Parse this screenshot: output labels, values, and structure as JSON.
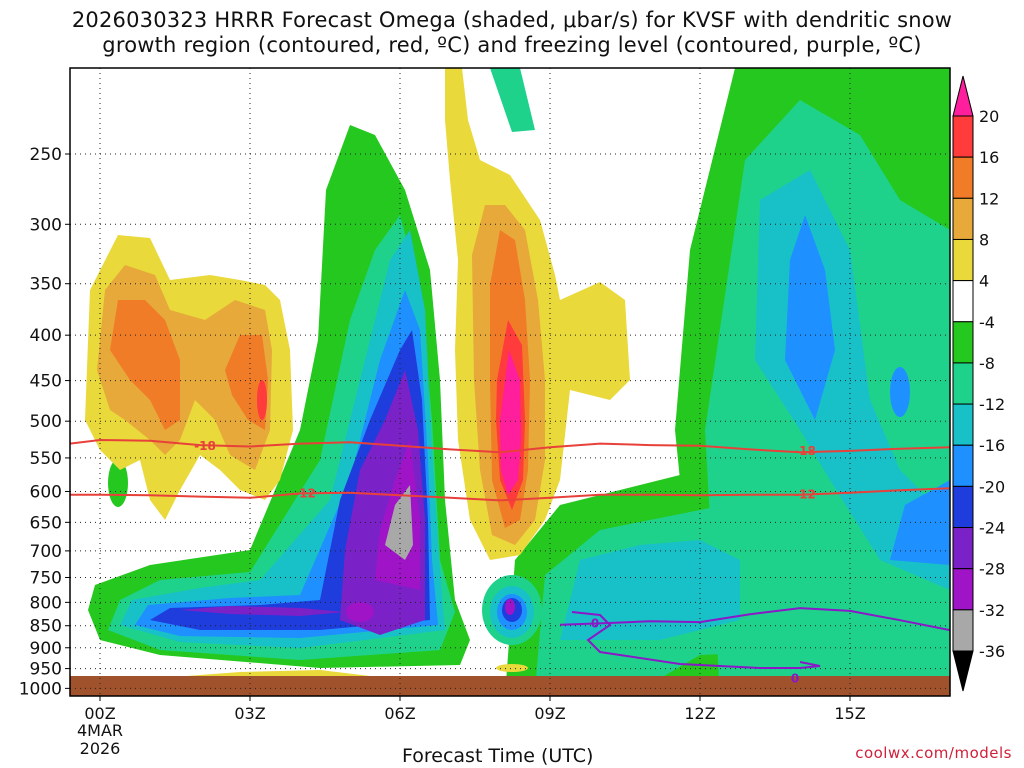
{
  "chart_data": {
    "type": "heatmap",
    "title": "2026030323 HRRR Forecast Omega (shaded, μbar/s) for KVSF with dendritic snow",
    "subtitle": "growth region (contoured, red, ºC) and freezing level (contoured, purple, ºC)",
    "xlabel": "Forecast Time (UTC)",
    "ylabel": "",
    "x_ticks": [
      "00Z",
      "03Z",
      "06Z",
      "09Z",
      "12Z",
      "15Z"
    ],
    "x_tick_hours": [
      0,
      3,
      6,
      9,
      12,
      15
    ],
    "x_date_line1": "4MAR",
    "x_date_line2": "2026",
    "x_range_hours": [
      -0.6,
      17.0
    ],
    "y_ticks": [
      250,
      300,
      350,
      400,
      450,
      500,
      550,
      600,
      650,
      700,
      750,
      800,
      850,
      900,
      950,
      1000
    ],
    "y_range_hPa": [
      200,
      1020
    ],
    "y_scale": "log-pressure",
    "colorbar_levels": [
      20,
      16,
      12,
      8,
      4,
      -4,
      -8,
      -12,
      -16,
      -20,
      -24,
      -28,
      -32,
      -36
    ],
    "colorbar_colors": [
      "#ff1f9c",
      "#ff3b3b",
      "#f07c28",
      "#e6a93a",
      "#ead93b",
      "#ffffff",
      "#25c81e",
      "#1fd28c",
      "#18c0c8",
      "#1e90ff",
      "#1e3ddc",
      "#7a22c8",
      "#a014c8",
      "#a8a8a8",
      "#000000"
    ],
    "contours": [
      {
        "name": "dendritic growth -18",
        "label": "-18",
        "color": "#e8413a",
        "points": [
          [
            -0.6,
            530
          ],
          [
            0,
            525
          ],
          [
            1,
            526
          ],
          [
            2,
            532
          ],
          [
            3,
            534
          ],
          [
            4,
            530
          ],
          [
            5,
            528
          ],
          [
            6,
            533
          ],
          [
            7,
            538
          ],
          [
            8,
            542
          ],
          [
            9,
            535
          ],
          [
            10,
            530
          ],
          [
            11,
            532
          ],
          [
            12,
            533
          ],
          [
            13,
            538
          ],
          [
            14,
            542
          ],
          [
            15,
            540
          ],
          [
            16,
            537
          ],
          [
            17,
            535
          ]
        ]
      },
      {
        "name": "dendritic growth -12",
        "label": "-12",
        "color": "#e8413a",
        "points": [
          [
            -0.6,
            605
          ],
          [
            0,
            605
          ],
          [
            1,
            606
          ],
          [
            2,
            608
          ],
          [
            3,
            610
          ],
          [
            4,
            603
          ],
          [
            5,
            602
          ],
          [
            6,
            606
          ],
          [
            7,
            610
          ],
          [
            8,
            614
          ],
          [
            9,
            610
          ],
          [
            10,
            605
          ],
          [
            11,
            605
          ],
          [
            12,
            606
          ],
          [
            13,
            605
          ],
          [
            14,
            605
          ],
          [
            15,
            602
          ],
          [
            16,
            598
          ],
          [
            17,
            595
          ]
        ]
      },
      {
        "name": "freezing level 0",
        "label": "0",
        "color": "#8a18c8",
        "points": [
          [
            9.2,
            848
          ],
          [
            10.0,
            845
          ],
          [
            11.0,
            840
          ],
          [
            12.0,
            842
          ],
          [
            13.0,
            825
          ],
          [
            14.0,
            812
          ],
          [
            15.0,
            818
          ],
          [
            16.0,
            838
          ],
          [
            17.0,
            860
          ]
        ]
      }
    ],
    "labels": [
      {
        "text": "-18",
        "x_hour": 2.1,
        "y_hPa": 533
      },
      {
        "text": "-18",
        "x_hour": 14.1,
        "y_hPa": 540
      },
      {
        "text": "-12",
        "x_hour": 4.1,
        "y_hPa": 603
      },
      {
        "text": "-12",
        "x_hour": 14.1,
        "y_hPa": 605
      },
      {
        "text": "0",
        "x_hour": 9.9,
        "y_hPa": 845
      },
      {
        "text": "0",
        "x_hour": 13.9,
        "y_hPa": 975
      }
    ]
  },
  "credit": "coolwx.com/models",
  "brand_color": "#d0203a"
}
